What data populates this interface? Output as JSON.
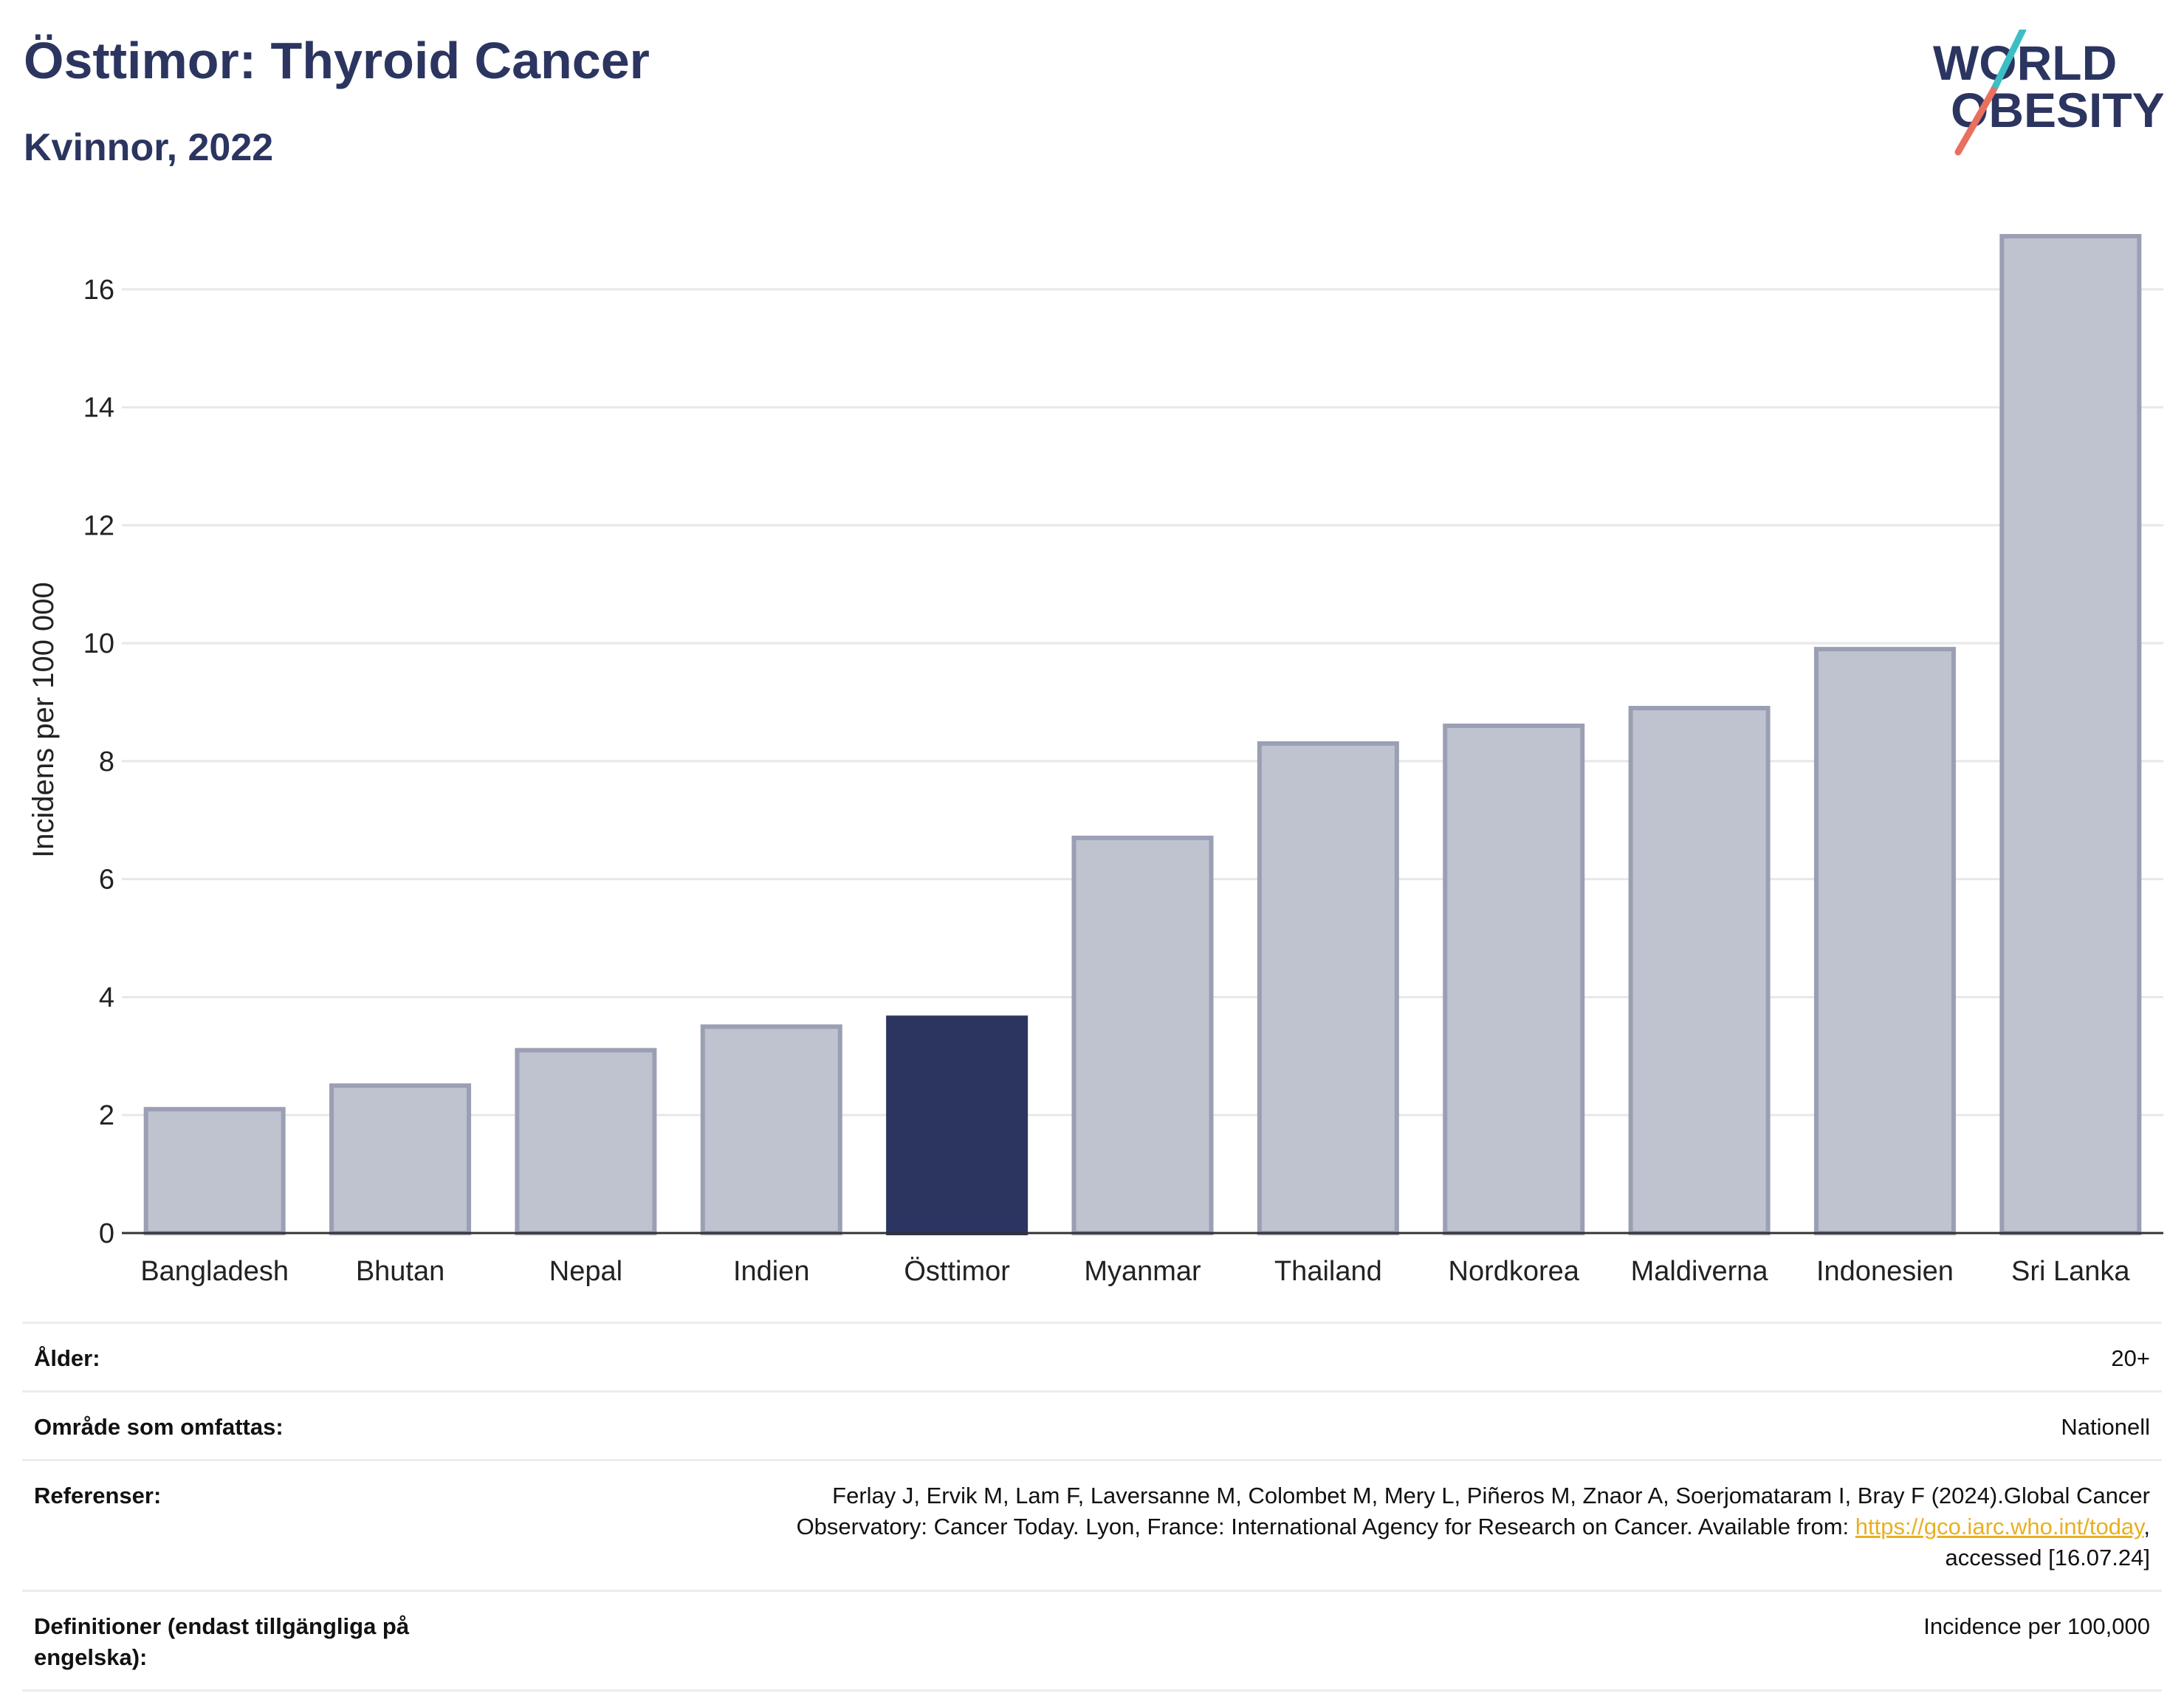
{
  "header": {
    "title": "Östtimor: Thyroid Cancer",
    "subtitle": "Kvinnor, 2022",
    "logo_line1": "WORLD",
    "logo_line2": "OBESITY"
  },
  "colors": {
    "highlight": "#2b3560",
    "bar_fill": "#bfc2cf",
    "bar_stroke": "#9a9fb4",
    "logo_teal": "#3bbfc4",
    "logo_coral": "#e8705f",
    "link": "#e8b021"
  },
  "chart_data": {
    "type": "bar",
    "title": "Östtimor: Thyroid Cancer",
    "subtitle": "Kvinnor, 2022",
    "xlabel": "",
    "ylabel": "Incidens per 100 000",
    "ylim": [
      0,
      17.5
    ],
    "yticks": [
      0,
      2,
      4,
      6,
      8,
      10,
      12,
      14,
      16
    ],
    "grid": true,
    "highlight": "Östtimor",
    "categories": [
      "Bangladesh",
      "Bhutan",
      "Nepal",
      "Indien",
      "Östtimor",
      "Myanmar",
      "Thailand",
      "Nordkorea",
      "Maldiverna",
      "Indonesien",
      "Sri Lanka"
    ],
    "values": [
      2.1,
      2.5,
      3.1,
      3.5,
      3.65,
      6.7,
      8.3,
      8.6,
      8.9,
      9.9,
      16.9
    ]
  },
  "meta": {
    "age_label": "Ålder:",
    "age_value": "20+",
    "area_label": "Område som omfattas:",
    "area_value": "Nationell",
    "ref_label": "Referenser:",
    "ref_text_1": "Ferlay J, Ervik M, Lam F, Laversanne M, Colombet M, Mery L, Piñeros M, Znaor A, Soerjomataram I, Bray F (2024).Global Cancer",
    "ref_text_2": "Observatory: Cancer Today. Lyon, France: International Agency for Research on Cancer. Available from: ",
    "ref_link": "https://gco.iarc.who.int/today",
    "ref_text_3": ",",
    "ref_text_4": "accessed [16.07.24]",
    "def_label": "Definitioner (endast tillgängliga på engelska):",
    "def_value": "Incidence per 100,000"
  }
}
